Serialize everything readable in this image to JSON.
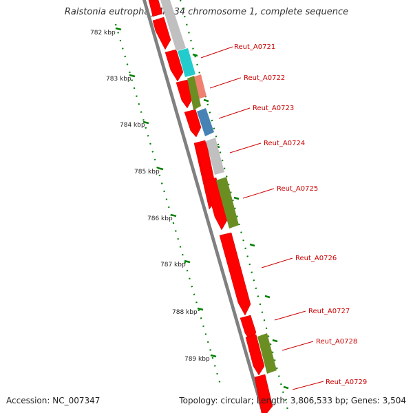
{
  "title": "Ralstonia eutropha JMP134 chromosome 1, complete sequence",
  "accession": "Accession: NC_007347",
  "topology": "Topology: circular; Length: 3,806,533 bp; Genes: 3,504",
  "scale_labels": [
    "782 kbp",
    "783 kbp",
    "784 kbp",
    "785 kbp",
    "786 kbp",
    "787 kbp",
    "788 kbp",
    "789 kbp"
  ],
  "gene_labels": [
    "Reut_A0721",
    "Reut_A0722",
    "Reut_A0723",
    "Reut_A0724",
    "Reut_A0725",
    "Reut_A0726",
    "Reut_A0727",
    "Reut_A0728",
    "Reut_A0729"
  ],
  "colors": {
    "cds": "#ff0000",
    "grey_feature": "#c0c0c0",
    "cyan_feature": "#22cccc",
    "salmon_feature": "#f08070",
    "olive_feature": "#6b8e23",
    "steelblue_feature": "#4682b4",
    "backbone": "#808080",
    "ticks": "#008000",
    "label": "#cc0000"
  }
}
